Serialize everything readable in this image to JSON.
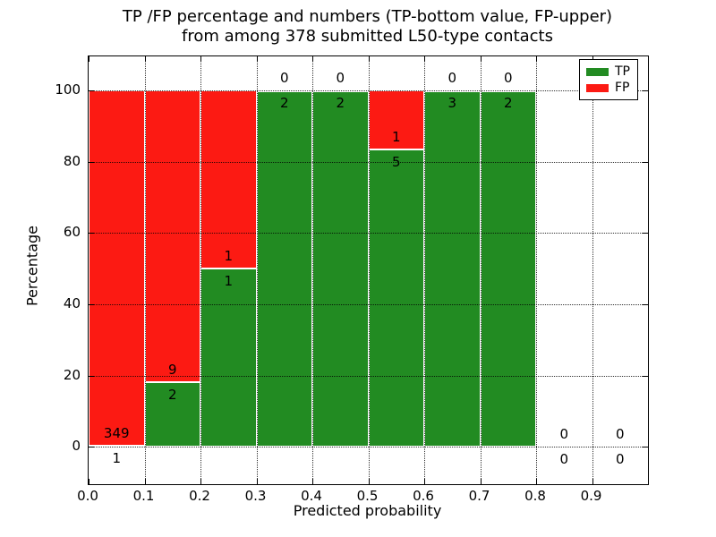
{
  "chart_data": {
    "type": "bar",
    "stacked": true,
    "title": "TP /FP percentage and numbers (TP-bottom value, FP-upper) from among 378 submitted L50-type contacts",
    "title_line1": "TP /FP percentage and numbers (TP-bottom value, FP-upper)",
    "title_line2": "from among 378 submitted L50-type contacts",
    "xlabel": "Predicted probability",
    "ylabel": "Percentage",
    "total_contacts": 378,
    "xlim": [
      0.0,
      1.0
    ],
    "ylim": [
      -10.5,
      109.5
    ],
    "x_tick_labels": [
      "0.0",
      "0.1",
      "0.2",
      "0.3",
      "0.4",
      "0.5",
      "0.6",
      "0.7",
      "0.8",
      "0.9"
    ],
    "x_tick_values": [
      0.0,
      0.1,
      0.2,
      0.3,
      0.4,
      0.5,
      0.6,
      0.7,
      0.8,
      0.9
    ],
    "y_ticks": [
      0,
      20,
      40,
      60,
      80,
      100
    ],
    "grid": "dotted",
    "label_offset_pct": 3.5,
    "legend": {
      "position": "upper right",
      "entries": [
        {
          "label": "TP",
          "color": "#228b22"
        },
        {
          "label": "FP",
          "color": "#fc1a13"
        }
      ]
    },
    "bins": [
      {
        "range": [
          0.0,
          0.1
        ],
        "tp": 1,
        "fp": 349
      },
      {
        "range": [
          0.1,
          0.2
        ],
        "tp": 2,
        "fp": 9
      },
      {
        "range": [
          0.2,
          0.3
        ],
        "tp": 1,
        "fp": 1
      },
      {
        "range": [
          0.3,
          0.4
        ],
        "tp": 2,
        "fp": 0
      },
      {
        "range": [
          0.4,
          0.5
        ],
        "tp": 2,
        "fp": 0
      },
      {
        "range": [
          0.5,
          0.6
        ],
        "tp": 5,
        "fp": 1
      },
      {
        "range": [
          0.6,
          0.7
        ],
        "tp": 3,
        "fp": 0
      },
      {
        "range": [
          0.7,
          0.8
        ],
        "tp": 2,
        "fp": 0
      },
      {
        "range": [
          0.8,
          0.9
        ],
        "tp": 0,
        "fp": 0
      },
      {
        "range": [
          0.9,
          1.0
        ],
        "tp": 0,
        "fp": 0
      }
    ],
    "colors": {
      "tp": "#228b22",
      "fp": "#fc1a13",
      "bar_edge": "#ffffff",
      "text": "#000000"
    }
  }
}
